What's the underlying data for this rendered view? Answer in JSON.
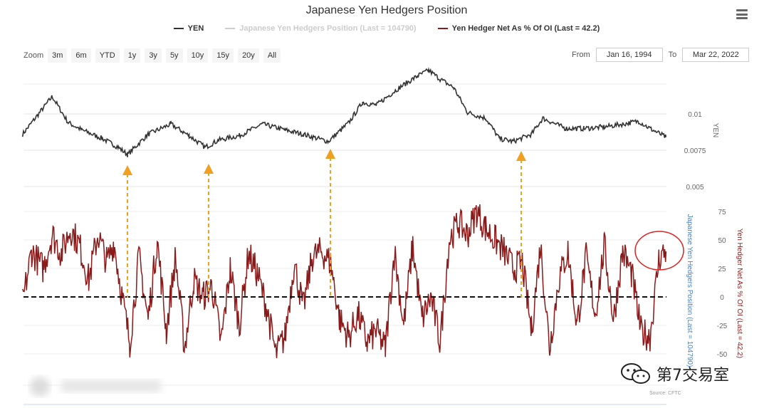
{
  "title": "Japanese Yen Hedgers Position",
  "legend": [
    {
      "label": "YEN",
      "color": "#333333",
      "dim": false
    },
    {
      "label": "Japanese Yen Hedgers Position (Last = 104790)",
      "color": "#cccccc",
      "dim": true
    },
    {
      "label": "Yen Hedger Net As % Of OI (Last = 42.2)",
      "color": "#8b1a1a",
      "dim": false
    }
  ],
  "zoom": {
    "label": "Zoom",
    "buttons": [
      "3m",
      "6m",
      "YTD",
      "1y",
      "3y",
      "5y",
      "10y",
      "15y",
      "20y",
      "All"
    ]
  },
  "range": {
    "from_label": "From",
    "from_value": "Jan 16, 1994",
    "to_label": "To",
    "to_value": "Mar 22, 2022"
  },
  "source": "Source: CFTC",
  "watermark": "第7交易室",
  "colors": {
    "yen": "#333333",
    "hedger": "#8b1a1a",
    "arrow": "#f0a020",
    "circle": "#e02020"
  },
  "chart_data": [
    {
      "type": "line",
      "x_range": [
        "1994-01-16",
        "2022-03-22"
      ],
      "series": [
        {
          "name": "YEN",
          "axis": "YEN",
          "x": [
            1994.0,
            1995.3,
            1996.0,
            1996.6,
            1997.5,
            1998.2,
            1998.6,
            1999.5,
            2000.5,
            2001.3,
            2002.0,
            2002.6,
            2003.5,
            2004.5,
            2005.5,
            2006.3,
            2007.4,
            2008.3,
            2008.9,
            2009.5,
            2010.5,
            2011.3,
            2011.8,
            2012.3,
            2012.9,
            2013.5,
            2014.3,
            2014.9,
            2015.5,
            2016.3,
            2016.8,
            2017.8,
            2018.6,
            2019.5,
            2020.3,
            2021.0,
            2021.5,
            2022.2
          ],
          "y": [
            0.0086,
            0.0112,
            0.0094,
            0.0089,
            0.0083,
            0.0077,
            0.0072,
            0.0086,
            0.0093,
            0.0085,
            0.0077,
            0.0082,
            0.0085,
            0.0093,
            0.0089,
            0.0086,
            0.0081,
            0.0094,
            0.0108,
            0.0106,
            0.0118,
            0.0126,
            0.013,
            0.0124,
            0.0118,
            0.0101,
            0.0097,
            0.0083,
            0.0081,
            0.0086,
            0.0097,
            0.009,
            0.009,
            0.0091,
            0.0093,
            0.0095,
            0.009,
            0.0084
          ]
        }
      ],
      "ylabel": "YEN",
      "yticks": [
        0.01,
        0.0075,
        0.005
      ]
    },
    {
      "type": "line",
      "x_range": [
        "1994-01-16",
        "2022-03-22"
      ],
      "series": [
        {
          "name": "Yen Hedger Net As % Of OI",
          "axis": "Yen Hedger Net As % Of OI (Last = 42.2)",
          "x": [
            1994.0,
            1994.4,
            1994.9,
            1995.3,
            1995.7,
            1996.1,
            1996.5,
            1996.9,
            1997.3,
            1997.7,
            1998.0,
            1998.4,
            1998.7,
            1999.1,
            1999.5,
            1999.9,
            2000.3,
            2000.7,
            2001.1,
            2001.5,
            2001.9,
            2002.3,
            2002.7,
            2003.1,
            2003.5,
            2003.9,
            2004.3,
            2004.7,
            2005.1,
            2005.5,
            2005.9,
            2006.3,
            2006.7,
            2007.1,
            2007.5,
            2007.9,
            2008.3,
            2008.7,
            2009.1,
            2009.5,
            2009.9,
            2010.3,
            2010.7,
            2011.1,
            2011.5,
            2011.9,
            2012.3,
            2012.7,
            2013.1,
            2013.5,
            2013.9,
            2014.3,
            2014.7,
            2015.1,
            2015.5,
            2015.9,
            2016.3,
            2016.7,
            2017.1,
            2017.5,
            2017.9,
            2018.3,
            2018.7,
            2019.1,
            2019.5,
            2019.9,
            2020.3,
            2020.7,
            2021.1,
            2021.5,
            2021.9,
            2022.2
          ],
          "y": [
            -5,
            40,
            25,
            55,
            38,
            60,
            45,
            15,
            55,
            30,
            48,
            -5,
            -40,
            35,
            -20,
            50,
            -30,
            35,
            -45,
            15,
            0,
            10,
            -40,
            25,
            -25,
            38,
            20,
            -10,
            -50,
            -35,
            30,
            -10,
            35,
            40,
            30,
            -20,
            -35,
            -15,
            -40,
            -30,
            -45,
            40,
            -25,
            45,
            -20,
            0,
            -40,
            50,
            65,
            55,
            75,
            60,
            50,
            40,
            25,
            30,
            -30,
            45,
            -45,
            15,
            40,
            -25,
            35,
            -15,
            45,
            -20,
            40,
            20,
            -30,
            -35,
            35,
            40
          ]
        }
      ],
      "ylabel": "Yen Hedger Net As % Of OI (Last = 42.2)",
      "ylabel2": "Japanese Yen Hedgers Position (Last = 104790)",
      "yticks": [
        75,
        50,
        25,
        0,
        -25,
        -50
      ],
      "reference_line": 0
    }
  ]
}
